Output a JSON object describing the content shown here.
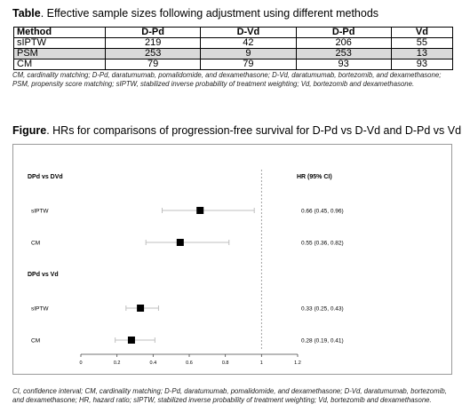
{
  "table_section": {
    "label": "Table",
    "caption": ". Effective sample sizes following adjustment using different methods",
    "headers": [
      "Method",
      "D-Pd",
      "D-Vd",
      "D-Pd",
      "Vd"
    ],
    "rows": [
      [
        "sIPTW",
        "219",
        "42",
        "206",
        "55"
      ],
      [
        "PSM",
        "253",
        "9",
        "253",
        "13"
      ],
      [
        "CM",
        "79",
        "79",
        "93",
        "93"
      ]
    ],
    "footnote": "CM, cardinality matching; D-Pd, daratumumab, pomalidomide, and dexamethasone; D-Vd, daratumumab, bortezomib, and dexamethasone; PSM, propensity score matching; sIPTW, stabilized inverse probability of treatment weighting; Vd, bortezomib and dexamethasone."
  },
  "figure_section": {
    "label": "Figure",
    "caption": ". HRs for comparisons of progression-free survival for D-Pd vs D-Vd and D-Pd vs Vd",
    "footnote": "CI, confidence interval; CM, cardinality matching; D-Pd, daratumumab, pomalidomide, and dexamethasone; D-Vd, daratumumab, bortezomib, and dexamethasone; HR, hazard ratio; sIPTW, stabilized inverse probability of treatment weighting; Vd, bortezomib and dexamethasone."
  },
  "chart_data": {
    "type": "forest",
    "hr_header": "HR (95% CI)",
    "x_ticks": [
      "0",
      "0.2",
      "0.4",
      "0.6",
      "0.8",
      "1",
      "1.2"
    ],
    "xlim": [
      0,
      1.2
    ],
    "reference_line": 1,
    "groups": [
      {
        "label": "DPd vs DVd",
        "rows": [
          {
            "method": "sIPTW",
            "hr": 0.66,
            "lo": 0.45,
            "hi": 0.96,
            "text": "0.66 (0.45, 0.96)"
          },
          {
            "method": "CM",
            "hr": 0.55,
            "lo": 0.36,
            "hi": 0.82,
            "text": "0.55 (0.36, 0.82)"
          }
        ]
      },
      {
        "label": "DPd vs Vd",
        "rows": [
          {
            "method": "sIPTW",
            "hr": 0.33,
            "lo": 0.25,
            "hi": 0.43,
            "text": "0.33 (0.25, 0.43)"
          },
          {
            "method": "CM",
            "hr": 0.28,
            "lo": 0.19,
            "hi": 0.41,
            "text": "0.28 (0.19, 0.41)"
          }
        ]
      }
    ],
    "colors": {
      "marker": "#000000",
      "ci_line": "#bfbfbf",
      "reference": "#8c8c8c",
      "axis": "#444444"
    }
  }
}
